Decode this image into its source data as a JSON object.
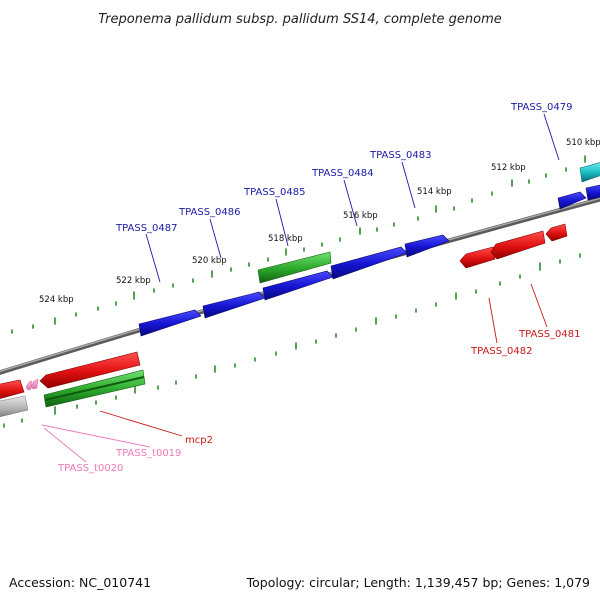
{
  "title": "Treponema pallidum subsp. pallidum SS14, complete genome",
  "footer": {
    "accession": "Accession: NC_010741",
    "summary": "Topology: circular; Length: 1,139,457 bp; Genes: 1,079"
  },
  "kbp_labels": [
    "510 kbp",
    "512 kbp",
    "514 kbp",
    "516 kbp",
    "518 kbp",
    "520 kbp",
    "522 kbp",
    "524 kbp"
  ],
  "gene_labels": {
    "TPASS_0479": "TPASS_0479",
    "TPASS_0483": "TPASS_0483",
    "TPASS_0484": "TPASS_0484",
    "TPASS_0485": "TPASS_0485",
    "TPASS_0486": "TPASS_0486",
    "TPASS_0487": "TPASS_0487",
    "TPASS_0481": "TPASS_0481",
    "TPASS_0482": "TPASS_0482",
    "mcp2": "mcp2",
    "TPASS_t0019": "TPASS_t0019",
    "TPASS_t0020": "TPASS_t0020"
  },
  "colors": {
    "cds_forward": "#1a1ad6",
    "cds_reverse": "#e01818",
    "rrna": "#2ea82e",
    "trna": "#f090c8",
    "other": "#b8b8b8",
    "highlight": "#20c0c8",
    "backbone": "#808080",
    "ticks": "#2a8a2a",
    "label_forward": "#1a1aa8",
    "label_reverse": "#c81818",
    "label_trna": "#f078b8"
  }
}
